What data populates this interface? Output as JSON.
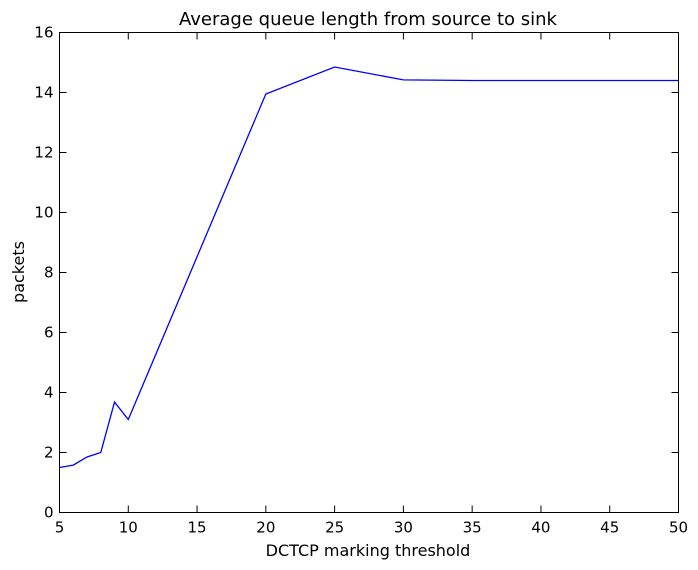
{
  "chart_data": {
    "type": "line",
    "title": "Average queue length from source to sink",
    "xlabel": "DCTCP marking threshold",
    "ylabel": "packets",
    "xlim": [
      5,
      50
    ],
    "ylim": [
      0,
      16
    ],
    "xticks": [
      5,
      10,
      15,
      20,
      25,
      30,
      35,
      40,
      45,
      50
    ],
    "yticks": [
      0,
      2,
      4,
      6,
      8,
      10,
      12,
      14,
      16
    ],
    "grid": false,
    "series": [
      {
        "color": "#0000ff",
        "x": [
          5,
          6,
          7,
          8,
          9,
          10,
          20,
          25,
          30,
          35,
          40,
          45,
          50
        ],
        "y": [
          1.5,
          1.58,
          1.85,
          2.0,
          3.68,
          3.1,
          13.95,
          14.85,
          14.42,
          14.4,
          14.4,
          14.4,
          14.4
        ]
      }
    ]
  }
}
